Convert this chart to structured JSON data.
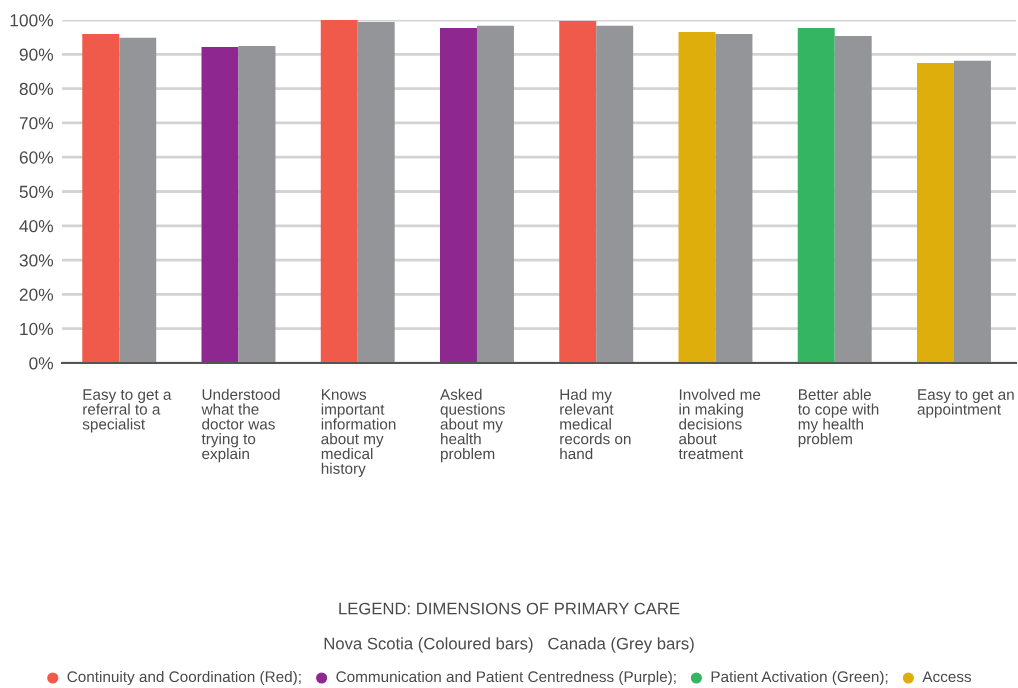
{
  "chart_data": {
    "type": "bar",
    "categories": [
      "Easy to get a\nreferral to a\nspecialist",
      "Understood\nwhat the\ndoctor was\ntrying to\nexplain",
      "Knows\nimportant\ninformation\nabout my\nmedical\nhistory",
      "Asked\nquestions\nabout my\nhealth\nproblem",
      "Had my\nrelevant\nmedical\nrecords on\nhand",
      "Involved me\nin making\ndecisions\nabout\ntreatment",
      "Better able\nto cope with\nmy health\nproblem",
      "Easy to get an\nappointment"
    ],
    "series": [
      {
        "colors": [
          "#f05a4a",
          "#8e278f",
          "#f05a4a",
          "#8e278f",
          "#f05a4a",
          "#ddae0c",
          "#34b561",
          "#ddae0c"
        ],
        "values": [
          95.9,
          92.1,
          100,
          97.7,
          99.7,
          96.5,
          97.7,
          87.5
        ]
      },
      {
        "color": "#949599",
        "values": [
          94.8,
          92.4,
          99.4,
          98.3,
          98.3,
          95.9,
          95.3,
          88.1
        ]
      }
    ],
    "ylim": [
      0,
      100
    ],
    "yticks": [
      {
        "value": 0,
        "label": "0%"
      },
      {
        "value": 10,
        "label": "10%"
      },
      {
        "value": 20,
        "label": "20%"
      },
      {
        "value": 30,
        "label": "30%"
      },
      {
        "value": 40,
        "label": "40%"
      },
      {
        "value": 50,
        "label": "50%"
      },
      {
        "value": 60,
        "label": "60%"
      },
      {
        "value": 70,
        "label": "70%"
      },
      {
        "value": 80,
        "label": "80%"
      },
      {
        "value": 90,
        "label": "90%"
      },
      {
        "value": 100,
        "label": "100%"
      }
    ],
    "grid": "y",
    "annotations": [
      "LEGEND: DIMENSIONS OF PRIMARY CARE",
      "Nova Scotia (Coloured bars)   Canada (Grey bars)",
      "Continuity and Coordination (Red);",
      "Communication and Patient Centredness (Purple);",
      "Patient Activation (Green);",
      "Access"
    ]
  }
}
